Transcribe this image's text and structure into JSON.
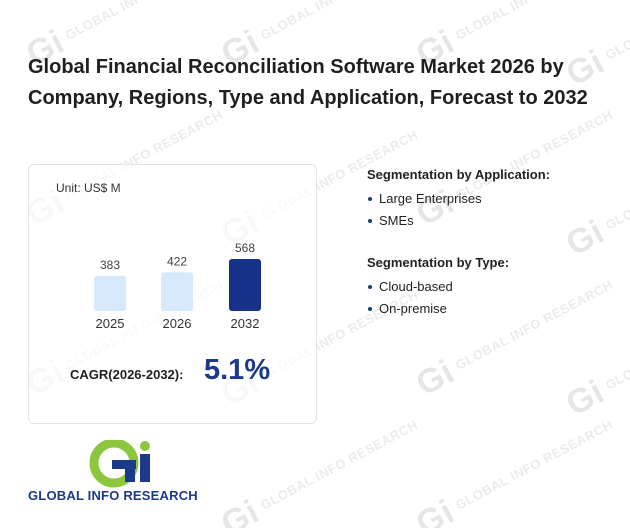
{
  "title": "Global Financial Reconciliation Software Market 2026 by Company, Regions, Type and Application, Forecast to 2032",
  "chart_data": {
    "type": "bar",
    "unit_label": "Unit: US$ M",
    "categories": [
      "2025",
      "2026",
      "2032"
    ],
    "values": [
      383,
      422,
      568
    ],
    "bar_colors": [
      "#d6e8fb",
      "#d6e8fb",
      "#17318a"
    ],
    "ylim": [
      0,
      568
    ]
  },
  "cagr": {
    "label": "CAGR(2026-2032):",
    "value": "5.1%"
  },
  "segmentation_application": {
    "title": "Segmentation by Application:",
    "items": [
      "Large Enterprises",
      "SMEs"
    ]
  },
  "segmentation_type": {
    "title": "Segmentation by Type:",
    "items": [
      "Cloud-based",
      "On-premise"
    ]
  },
  "logo": {
    "text": "GLOBAL INFO RESEARCH",
    "colors": {
      "green": "#8cc63e",
      "blue": "#1b3a8a"
    }
  },
  "watermark": {
    "text": "GLOBAL INFO RESEARCH",
    "mark": "Gi"
  }
}
